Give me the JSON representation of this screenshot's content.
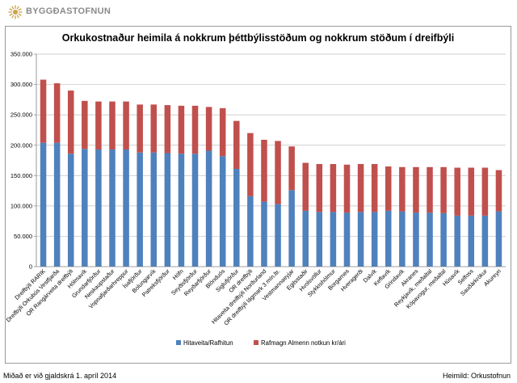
{
  "brand": {
    "name": "BYGGÐASTOFNUN",
    "logo_icon": "sun-logo-icon",
    "logo_color": "#c8a44a"
  },
  "footer": {
    "left": "Miðað er við gjaldskrá 1. apríl 2014",
    "right": "Heimild: Orkustofnun"
  },
  "chart_data": {
    "type": "bar",
    "stacked": true,
    "title": "Orkukostnaður heimila á nokkrum þéttbýlisstöðum og nokkrum stöðum í dreifbýli",
    "xlabel": "",
    "ylabel": "",
    "ylim": [
      0,
      350000
    ],
    "ytick_step": 50000,
    "ytick_labels": [
      "0",
      "50.000",
      "100.000",
      "150.000",
      "200.000",
      "250.000",
      "300.000",
      "350.000"
    ],
    "grid": true,
    "legend_position": "bottom",
    "categories": [
      "Dreifbýli RARIK",
      "Dreifbýli Orkubús Vestfjarða",
      "OR Rangárveita dreifbýli",
      "Hólmavík",
      "Grundarfjörður",
      "Neskaupstaður",
      "Vopnafjarðarhreppur",
      "Ísafjörður",
      "Bolungarvík",
      "Patreksfjörður",
      "Höfn",
      "Seyðisfjörður",
      "Reyðarfjörður",
      "Blönduós",
      "Siglufjörður",
      "OR dreifbýli",
      "Hitaveita dreifbýli Norðurland",
      "OR dreifbýli lágmark 3 mín.ltr.",
      "Vestmannaeyjar",
      "Egilsstaðir",
      "Hvolsvöllur",
      "Stykkishólmur",
      "Borgarnes",
      "Hveragerði",
      "Dalvík",
      "Keflavík",
      "Grindavík",
      "Akranes",
      "Reykjavík, meðaltal",
      "Kópavogur, meðaltal",
      "Húsavík",
      "Selfoss",
      "Sauðárkrókur",
      "Akureyri"
    ],
    "series": [
      {
        "name": "Hitaveita/Rafhitun",
        "color": "#4f81bd",
        "values": [
          204000,
          204000,
          186000,
          194000,
          193000,
          193000,
          193000,
          188000,
          188000,
          187000,
          186000,
          186000,
          191000,
          182000,
          161000,
          116000,
          107000,
          103000,
          126000,
          92000,
          90000,
          90000,
          89000,
          90000,
          90000,
          92000,
          91000,
          89000,
          89000,
          88000,
          84000,
          84000,
          84000,
          91000
        ]
      },
      {
        "name": "Rafmagn Almenn notkun kr/ári",
        "color": "#c0504d",
        "values": [
          104000,
          98000,
          104000,
          79000,
          79000,
          79000,
          79000,
          79000,
          79000,
          79000,
          79000,
          79000,
          72000,
          79000,
          79000,
          104000,
          102000,
          104000,
          72000,
          79000,
          79000,
          79000,
          79000,
          79000,
          79000,
          73000,
          73000,
          75000,
          75000,
          76000,
          79000,
          79000,
          79000,
          68000
        ]
      }
    ]
  }
}
